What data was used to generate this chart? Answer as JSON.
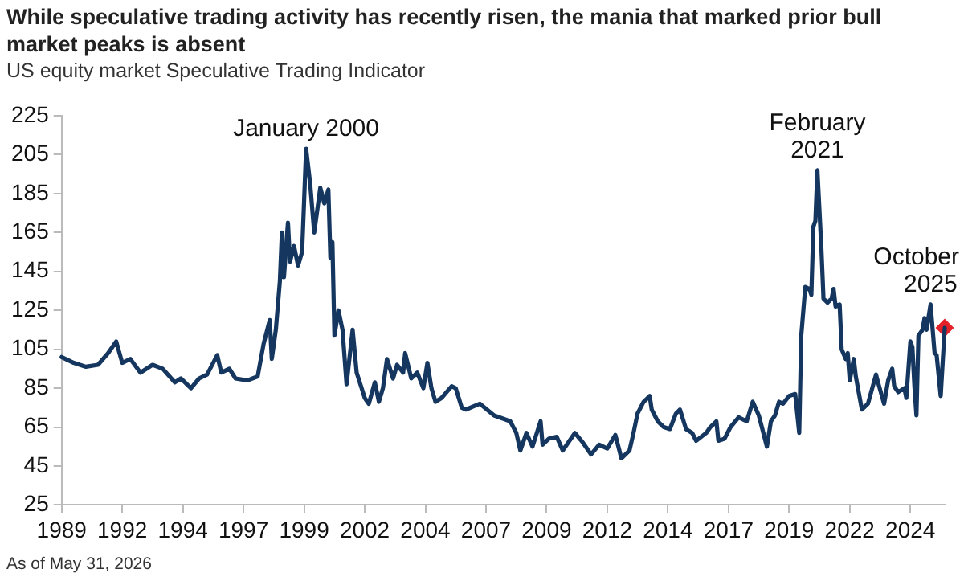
{
  "chart_data": {
    "type": "line",
    "title": "While speculative trading activity has recently risen, the mania that marked prior bull market peaks is absent",
    "subtitle": "US equity market Speculative Trading Indicator",
    "annotations": [
      {
        "text": "January 2000",
        "x": "2000-01",
        "y": 208
      },
      {
        "text": "February\n2021",
        "x": "2021-02",
        "y": 197
      },
      {
        "text": "October\n2025",
        "x": "2025-10",
        "y": 128
      },
      "As of May 31, 2026"
    ],
    "x": [
      "1989-12",
      "1990-06",
      "1990-12",
      "1991-06",
      "1991-11",
      "1992-03",
      "1992-06",
      "1992-10",
      "1993-03",
      "1993-09",
      "1994-02",
      "1994-08",
      "1994-11",
      "1995-04",
      "1995-08",
      "1995-12",
      "1996-05",
      "1996-07",
      "1996-11",
      "1997-02",
      "1997-08",
      "1998-01",
      "1998-04",
      "1998-07",
      "1998-08",
      "1998-10",
      "1998-12",
      "1999-01",
      "1999-02",
      "1999-04",
      "1999-05",
      "1999-07",
      "1999-09",
      "1999-11",
      "2000-01",
      "2000-03",
      "2000-05",
      "2000-08",
      "2000-10",
      "2000-12",
      "2001-01",
      "2001-02",
      "2001-03",
      "2001-05",
      "2001-07",
      "2001-09",
      "2001-12",
      "2002-02",
      "2002-06",
      "2002-08",
      "2002-11",
      "2003-01",
      "2003-03",
      "2003-05",
      "2003-08",
      "2003-10",
      "2004-01",
      "2004-02",
      "2004-05",
      "2004-08",
      "2004-11",
      "2005-01",
      "2005-03",
      "2005-05",
      "2005-08",
      "2006-01",
      "2006-03",
      "2006-06",
      "2006-08",
      "2007-03",
      "2007-10",
      "2008-06",
      "2008-09",
      "2008-11",
      "2009-02",
      "2009-05",
      "2009-09",
      "2009-10",
      "2010-01",
      "2010-05",
      "2010-08",
      "2011-02",
      "2011-06",
      "2011-10",
      "2012-02",
      "2012-06",
      "2012-10",
      "2013-01",
      "2013-05",
      "2013-07",
      "2013-09",
      "2013-12",
      "2014-03",
      "2014-04",
      "2014-07",
      "2014-10",
      "2015-01",
      "2015-04",
      "2015-06",
      "2015-09",
      "2015-12",
      "2016-02",
      "2016-07",
      "2016-09",
      "2016-12",
      "2017-01",
      "2017-04",
      "2017-07",
      "2017-11",
      "2018-03",
      "2018-06",
      "2018-09",
      "2019-01",
      "2019-03",
      "2019-05",
      "2019-07",
      "2019-09",
      "2019-12",
      "2020-03",
      "2020-05",
      "2020-06",
      "2020-08",
      "2020-10",
      "2020-11",
      "2020-12",
      "2021-01",
      "2021-02",
      "2021-04",
      "2021-05",
      "2021-07",
      "2021-09",
      "2021-10",
      "2021-11",
      "2022-01",
      "2022-02",
      "2022-04",
      "2022-05",
      "2022-06",
      "2022-08",
      "2022-09",
      "2022-12",
      "2023-03",
      "2023-07",
      "2023-08",
      "2023-11",
      "2024-01",
      "2024-03",
      "2024-04",
      "2024-06",
      "2024-09",
      "2024-10",
      "2024-12",
      "2025-01",
      "2025-02",
      "2025-03",
      "2025-04",
      "2025-06",
      "2025-07",
      "2025-08",
      "2025-10",
      "2025-12",
      "2026-01",
      "2026-03",
      "2026-05"
    ],
    "series": [
      {
        "color": "#14365f",
        "values": [
          101,
          98,
          96,
          97,
          103,
          109,
          98,
          100,
          93,
          97,
          95,
          88,
          90,
          85,
          90,
          92,
          102,
          93,
          95,
          90,
          89,
          91,
          108,
          120,
          100,
          115,
          140,
          165,
          142,
          170,
          150,
          158,
          148,
          155,
          208,
          190,
          165,
          188,
          180,
          187,
          152,
          160,
          112,
          125,
          115,
          87,
          115,
          93,
          80,
          77,
          88,
          78,
          85,
          100,
          90,
          97,
          93,
          103,
          90,
          93,
          85,
          98,
          85,
          78,
          80,
          86,
          85,
          75,
          74,
          77,
          71,
          68,
          62,
          53,
          62,
          55,
          68,
          56,
          59,
          60,
          53,
          62,
          57,
          51,
          56,
          54,
          61,
          49,
          53,
          62,
          72,
          78,
          81,
          74,
          68,
          65,
          64,
          72,
          74,
          64,
          62,
          58,
          62,
          65,
          68,
          58,
          59,
          65,
          70,
          68,
          78,
          71,
          55,
          68,
          71,
          78,
          77,
          81,
          82,
          62,
          112,
          137,
          136,
          133,
          168,
          171,
          197,
          156,
          131,
          129,
          131,
          136,
          127,
          128,
          105,
          100,
          103,
          89,
          100,
          91,
          74,
          77,
          92,
          88,
          77,
          89,
          95,
          86,
          83,
          85,
          80,
          109,
          106,
          86,
          71,
          112,
          115,
          121,
          115,
          128,
          103,
          102,
          81,
          116
        ]
      },
      {
        "type": "scatter",
        "marker": "diamond",
        "color": "#e3222a",
        "x": [
          "2026-05"
        ],
        "values": [
          116
        ]
      }
    ],
    "marker": "none",
    "line_style": "solid",
    "grid": false,
    "legend": false,
    "xlim": [
      "1989-12",
      "2026-05"
    ],
    "xticks": [
      {
        "value": "1989-12",
        "label": "1989"
      },
      {
        "value": "1992-06",
        "label": "1992"
      },
      {
        "value": "1994-12",
        "label": "1994"
      },
      {
        "value": "1997-06",
        "label": "1997"
      },
      {
        "value": "1999-12",
        "label": "1999"
      },
      {
        "value": "2002-06",
        "label": "2002"
      },
      {
        "value": "2004-12",
        "label": "2004"
      },
      {
        "value": "2007-06",
        "label": "2007"
      },
      {
        "value": "2009-12",
        "label": "2009"
      },
      {
        "value": "2012-06",
        "label": "2012"
      },
      {
        "value": "2014-12",
        "label": "2014"
      },
      {
        "value": "2017-06",
        "label": "2017"
      },
      {
        "value": "2019-12",
        "label": "2019"
      },
      {
        "value": "2022-06",
        "label": "2022"
      },
      {
        "value": "2024-12",
        "label": "2024"
      }
    ],
    "ylim": [
      25,
      225
    ],
    "yticks": [
      25,
      45,
      65,
      85,
      105,
      125,
      145,
      165,
      185,
      205,
      225
    ]
  }
}
